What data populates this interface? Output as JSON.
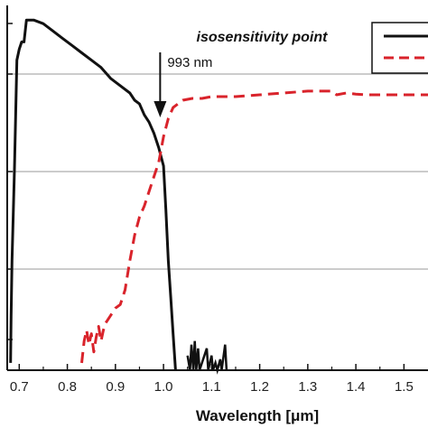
{
  "chart_data": {
    "type": "line",
    "xlabel": "Wavelength [μm]",
    "ylabel": "",
    "xlim": [
      0.675,
      1.55
    ],
    "x_ticks": [
      "0.7",
      "0.8",
      "0.9",
      "1.0",
      "1.1",
      "1.2",
      "1.3",
      "1.4",
      "1.5"
    ],
    "y_scale": "log",
    "y_gridlines": 3,
    "legend_position": "top-right",
    "annotations": {
      "title": "isosensitivity point",
      "value_label": "993 nm",
      "x": 0.993
    },
    "series": [
      {
        "color": "#111111",
        "style": "solid",
        "points": [
          [
            0.682,
            0.02
          ],
          [
            0.683,
            0.15
          ],
          [
            0.685,
            0.3
          ],
          [
            0.69,
            0.55
          ],
          [
            0.695,
            0.85
          ],
          [
            0.7,
            0.88
          ],
          [
            0.705,
            0.9
          ],
          [
            0.71,
            0.9
          ],
          [
            0.715,
            0.96
          ],
          [
            0.73,
            0.96
          ],
          [
            0.75,
            0.95
          ],
          [
            0.77,
            0.93
          ],
          [
            0.79,
            0.91
          ],
          [
            0.81,
            0.89
          ],
          [
            0.83,
            0.87
          ],
          [
            0.85,
            0.85
          ],
          [
            0.87,
            0.83
          ],
          [
            0.89,
            0.8
          ],
          [
            0.91,
            0.78
          ],
          [
            0.93,
            0.76
          ],
          [
            0.94,
            0.74
          ],
          [
            0.95,
            0.73
          ],
          [
            0.96,
            0.7
          ],
          [
            0.97,
            0.68
          ],
          [
            0.98,
            0.65
          ],
          [
            0.99,
            0.61
          ],
          [
            1.0,
            0.56
          ],
          [
            1.005,
            0.44
          ],
          [
            1.01,
            0.3
          ],
          [
            1.015,
            0.2
          ],
          [
            1.02,
            0.1
          ],
          [
            1.025,
            0.0
          ]
        ],
        "noise_points": [
          [
            1.05,
            0.04
          ],
          [
            1.055,
            0.0
          ],
          [
            1.058,
            0.07
          ],
          [
            1.062,
            0.0
          ],
          [
            1.065,
            0.08
          ],
          [
            1.068,
            0.0
          ],
          [
            1.072,
            0.06
          ],
          [
            1.075,
            0.0
          ],
          [
            1.09,
            0.06
          ],
          [
            1.093,
            0.0
          ],
          [
            1.1,
            0.04
          ],
          [
            1.103,
            0.0
          ],
          [
            1.108,
            0.02
          ],
          [
            1.112,
            0.0
          ],
          [
            1.118,
            0.03
          ],
          [
            1.121,
            0.0
          ],
          [
            1.128,
            0.07
          ],
          [
            1.131,
            0.0
          ]
        ]
      },
      {
        "color": "#d9232b",
        "style": "dashed",
        "points": [
          [
            0.83,
            0.02
          ],
          [
            0.835,
            0.08
          ],
          [
            0.84,
            0.11
          ],
          [
            0.845,
            0.07
          ],
          [
            0.85,
            0.1
          ],
          [
            0.855,
            0.05
          ],
          [
            0.86,
            0.09
          ],
          [
            0.865,
            0.12
          ],
          [
            0.87,
            0.08
          ],
          [
            0.875,
            0.11
          ],
          [
            0.88,
            0.13
          ],
          [
            0.89,
            0.15
          ],
          [
            0.9,
            0.17
          ],
          [
            0.91,
            0.18
          ],
          [
            0.92,
            0.22
          ],
          [
            0.93,
            0.3
          ],
          [
            0.94,
            0.37
          ],
          [
            0.95,
            0.42
          ],
          [
            0.96,
            0.45
          ],
          [
            0.97,
            0.49
          ],
          [
            0.98,
            0.53
          ],
          [
            0.99,
            0.57
          ],
          [
            1.0,
            0.64
          ],
          [
            1.01,
            0.69
          ],
          [
            1.02,
            0.72
          ],
          [
            1.04,
            0.74
          ],
          [
            1.06,
            0.745
          ],
          [
            1.08,
            0.745
          ],
          [
            1.1,
            0.75
          ],
          [
            1.15,
            0.75
          ],
          [
            1.2,
            0.755
          ],
          [
            1.25,
            0.76
          ],
          [
            1.3,
            0.765
          ],
          [
            1.35,
            0.765
          ],
          [
            1.36,
            0.755
          ],
          [
            1.38,
            0.76
          ],
          [
            1.4,
            0.757
          ],
          [
            1.42,
            0.755
          ],
          [
            1.45,
            0.755
          ],
          [
            1.5,
            0.755
          ],
          [
            1.55,
            0.755
          ]
        ]
      }
    ]
  }
}
